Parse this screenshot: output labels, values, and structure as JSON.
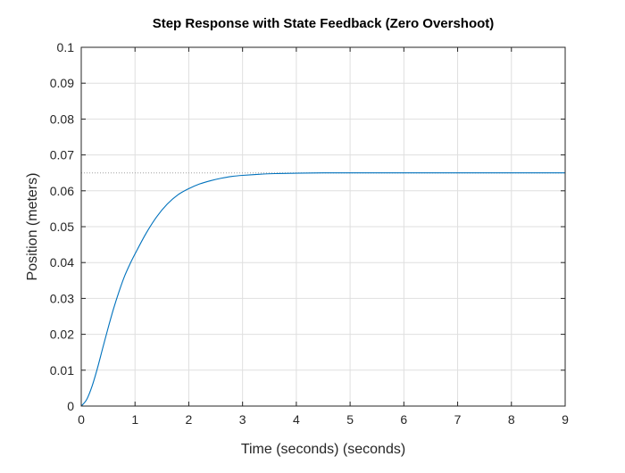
{
  "chart_data": {
    "type": "line",
    "title": "Step Response with State Feedback (Zero Overshoot)",
    "xlabel": "Time (seconds) (seconds)",
    "ylabel": "Position (meters)",
    "xlim": [
      0,
      9
    ],
    "ylim": [
      0,
      0.1
    ],
    "xticks": [
      "0",
      "1",
      "2",
      "3",
      "4",
      "5",
      "6",
      "7",
      "8",
      "9"
    ],
    "yticks": [
      "0",
      "0.01",
      "0.02",
      "0.03",
      "0.04",
      "0.05",
      "0.06",
      "0.07",
      "0.08",
      "0.09",
      "0.1"
    ],
    "grid": true,
    "steady_state_value": 0.065,
    "series": [
      {
        "color": "#0072BD",
        "x": [
          0,
          0.1,
          0.2,
          0.3,
          0.4,
          0.5,
          0.6,
          0.7,
          0.8,
          0.9,
          1.0,
          1.2,
          1.4,
          1.6,
          1.8,
          2.0,
          2.2,
          2.4,
          2.6,
          2.8,
          3.0,
          3.3,
          3.6,
          4.0,
          4.5,
          5.0,
          6.0,
          7.0,
          8.0,
          9.0
        ],
        "y": [
          0,
          0.0018,
          0.0055,
          0.0105,
          0.0162,
          0.0218,
          0.0271,
          0.0318,
          0.036,
          0.0394,
          0.0424,
          0.048,
          0.0527,
          0.0563,
          0.0589,
          0.0606,
          0.0619,
          0.0628,
          0.0635,
          0.064,
          0.0643,
          0.0646,
          0.0648,
          0.0649,
          0.065,
          0.065,
          0.065,
          0.065,
          0.065,
          0.065
        ]
      }
    ]
  },
  "colors": {
    "line": "#0072BD",
    "grid": "#dfdfdf",
    "axis": "#262626",
    "reference_line": "#a0a0a0"
  }
}
